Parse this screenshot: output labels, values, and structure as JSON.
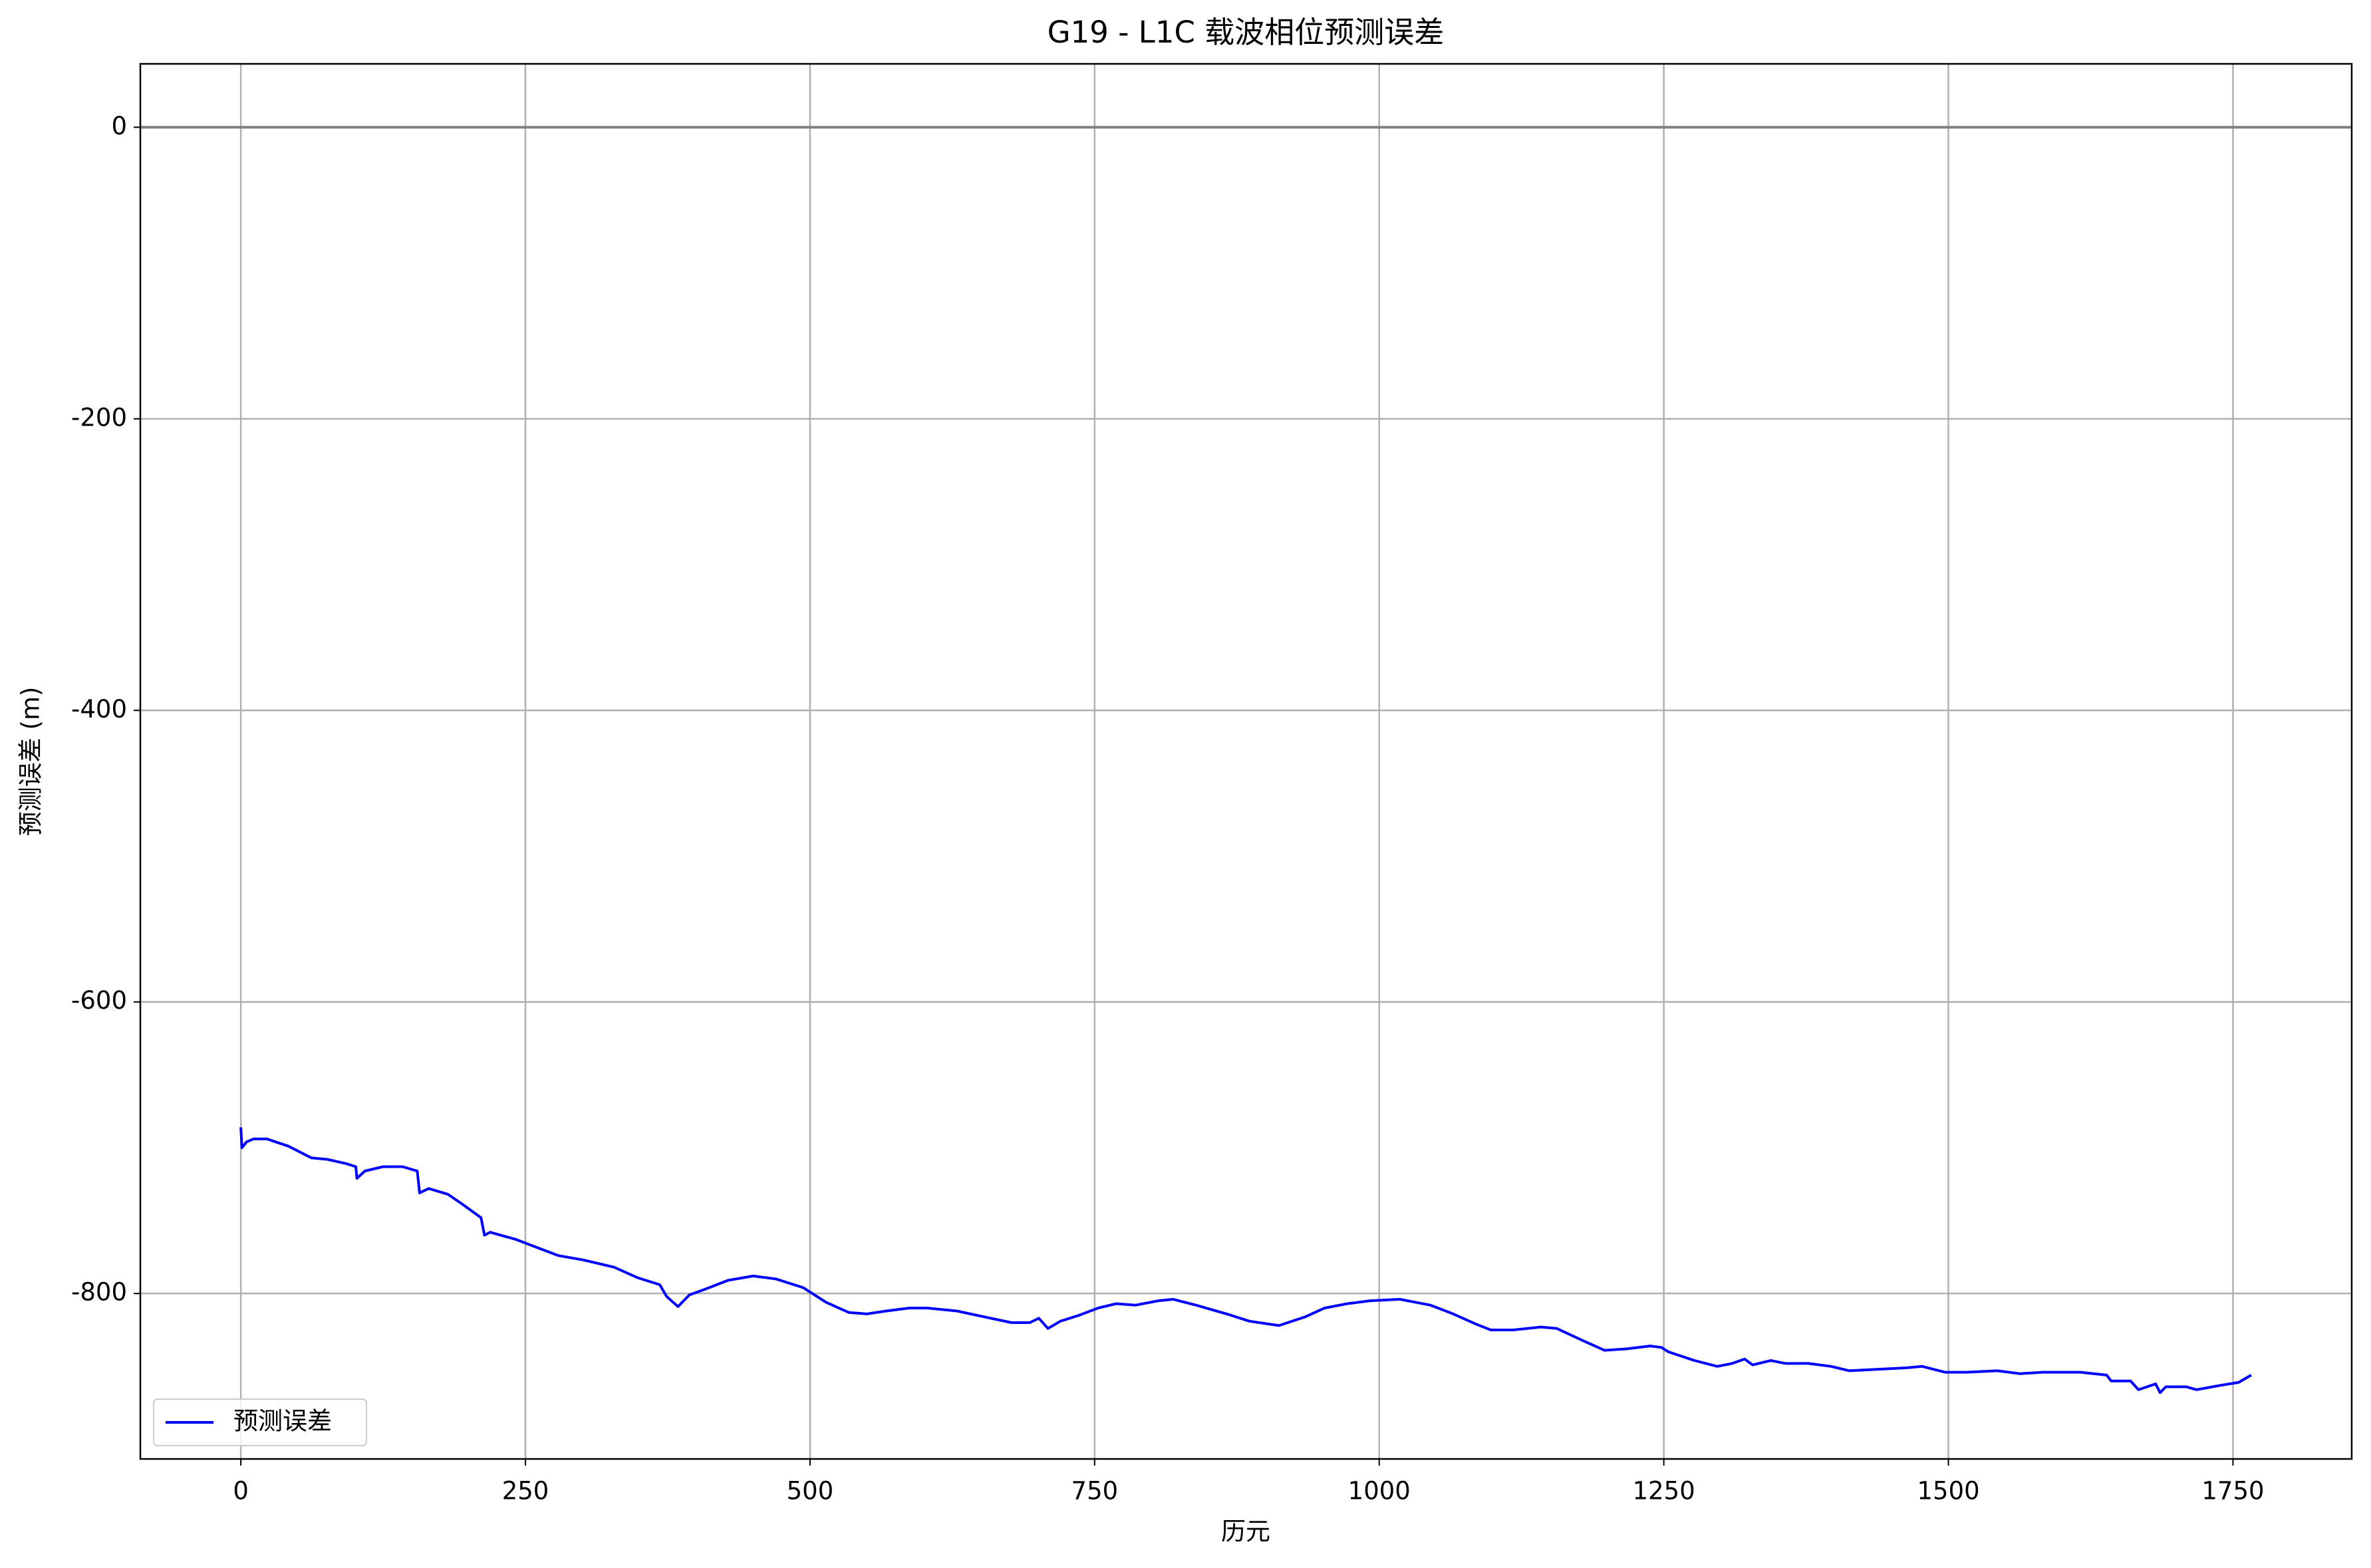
{
  "chart_data": {
    "type": "line",
    "title": "G19 - L1C 载波相位预测误差",
    "xlabel": "历元",
    "ylabel": "预测误差 (m)",
    "x": [
      0,
      1,
      5,
      11,
      23,
      42,
      62,
      76,
      93,
      101,
      102,
      109,
      125,
      142,
      155,
      157,
      165,
      182,
      195,
      211,
      214,
      219,
      242,
      262,
      279,
      301,
      328,
      348,
      368,
      374,
      384,
      394,
      408,
      428,
      450,
      470,
      494,
      514,
      534,
      550,
      567,
      587,
      603,
      629,
      653,
      677,
      693,
      701,
      709,
      720,
      736,
      753,
      769,
      786,
      806,
      819,
      839,
      866,
      886,
      912,
      935,
      952,
      972,
      992,
      1018,
      1045,
      1065,
      1085,
      1098,
      1118,
      1142,
      1156,
      1178,
      1198,
      1217,
      1238,
      1248,
      1254,
      1277,
      1297,
      1310,
      1321,
      1328,
      1344,
      1357,
      1377,
      1397,
      1413,
      1437,
      1463,
      1477,
      1497,
      1516,
      1543,
      1563,
      1583,
      1616,
      1639,
      1643,
      1660,
      1667,
      1682,
      1686,
      1691,
      1709,
      1718,
      1739,
      1755,
      1766
    ],
    "series": [
      {
        "name": "预测误差",
        "color": "#0000ff",
        "values": [
          -686,
          -700,
          -696,
          -694,
          -694,
          -699,
          -707,
          -708,
          -711,
          -713,
          -721,
          -716,
          -713,
          -713,
          -716,
          -731,
          -728,
          -732,
          -739,
          -748,
          -760,
          -758,
          -763,
          -769,
          -774,
          -777,
          -782,
          -789,
          -794,
          -802,
          -809,
          -801,
          -797,
          -791,
          -788,
          -790,
          -796,
          -806,
          -813,
          -814,
          -812,
          -810,
          -810,
          -812,
          -816,
          -820,
          -820,
          -817,
          -824,
          -819,
          -815,
          -810,
          -807,
          -808,
          -805,
          -804,
          -808,
          -814,
          -819,
          -822,
          -816,
          -810,
          -807,
          -805,
          -804,
          -808,
          -814,
          -821,
          -825,
          -825,
          -823,
          -824,
          -832,
          -839,
          -838,
          -836,
          -837,
          -840,
          -846,
          -850,
          -848,
          -845,
          -849,
          -846,
          -848,
          -848,
          -850,
          -853,
          -852,
          -851,
          -850,
          -854,
          -854,
          -853,
          -855,
          -854,
          -854,
          -856,
          -860,
          -860,
          -866,
          -862,
          -868,
          -864,
          -864,
          -866,
          -863,
          -861,
          -856
        ]
      }
    ],
    "hline": 0,
    "hline_color": "#808080",
    "xlim": [
      -88.3,
      1854.3
    ],
    "ylim": [
      -913.5,
      43.5
    ],
    "xticks": [
      0,
      250,
      500,
      750,
      1000,
      1250,
      1500,
      1750
    ],
    "yticks": [
      0,
      -200,
      -400,
      -600,
      -800
    ],
    "grid": true,
    "legend": "lower left"
  }
}
